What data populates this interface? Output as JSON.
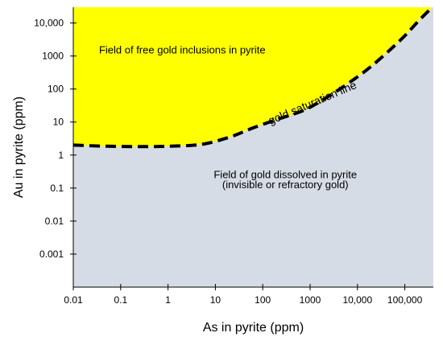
{
  "chart_data": {
    "type": "line",
    "title": "",
    "xlabel": "As in pyrite (ppm)",
    "ylabel": "Au in pyrite (ppm)",
    "x_scale": "log",
    "y_scale": "log",
    "xlim": [
      0.01,
      400000
    ],
    "ylim": [
      0.0001,
      30000
    ],
    "x_ticks": [
      {
        "value": 0.01,
        "label": "0.01"
      },
      {
        "value": 0.1,
        "label": "0.1"
      },
      {
        "value": 1,
        "label": "1"
      },
      {
        "value": 10,
        "label": "10"
      },
      {
        "value": 100,
        "label": "100"
      },
      {
        "value": 1000,
        "label": "1000"
      },
      {
        "value": 10000,
        "label": "10,000"
      },
      {
        "value": 100000,
        "label": "100,000"
      }
    ],
    "y_ticks": [
      {
        "value": 0.001,
        "label": "0.001"
      },
      {
        "value": 0.01,
        "label": "0.01"
      },
      {
        "value": 0.1,
        "label": "0.1"
      },
      {
        "value": 1,
        "label": "1"
      },
      {
        "value": 10,
        "label": "10"
      },
      {
        "value": 100,
        "label": "100"
      },
      {
        "value": 1000,
        "label": "1000"
      },
      {
        "value": 10000,
        "label": "10,000"
      }
    ],
    "grid": false,
    "series": [
      {
        "name": "gold saturation line",
        "style": "dashed",
        "color": "#000000",
        "points": [
          [
            0.01,
            2.0
          ],
          [
            0.05,
            1.85
          ],
          [
            0.3,
            1.8
          ],
          [
            1,
            1.85
          ],
          [
            5,
            2.1
          ],
          [
            20,
            3.5
          ],
          [
            60,
            6.5
          ],
          [
            200,
            12
          ],
          [
            700,
            22
          ],
          [
            2000,
            50
          ],
          [
            6000,
            140
          ],
          [
            20000,
            500
          ],
          [
            80000,
            3000
          ],
          [
            200000,
            12000
          ],
          [
            380000,
            30000
          ]
        ]
      }
    ],
    "regions": [
      {
        "label": "Field of free gold inclusions in pyrite",
        "color": "#ffff00",
        "position": "above-line"
      },
      {
        "label_lines": [
          "Field of gold dissolved in pyrite",
          "(invisible or refractory gold)"
        ],
        "color": "#d6dce5",
        "position": "below-line"
      }
    ],
    "annotations": {
      "upper_label_at": [
        2,
        1200
      ],
      "lower_label_lines_at": [
        [
          300,
          0.2
        ],
        [
          300,
          0.1
        ]
      ],
      "curve_label_at": [
        1200,
        30
      ],
      "curve_label_angle": -23
    }
  }
}
